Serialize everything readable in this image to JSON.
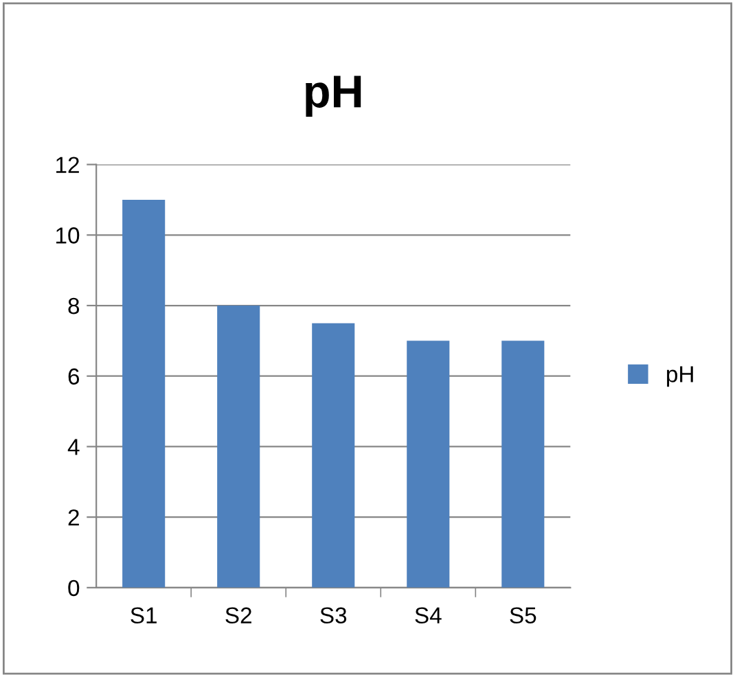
{
  "chart_data": {
    "type": "bar",
    "title": "pH",
    "categories": [
      "S1",
      "S2",
      "S3",
      "S4",
      "S5"
    ],
    "series": [
      {
        "name": "pH",
        "color": "#4f81bd",
        "values": [
          11,
          8,
          7.5,
          7,
          7
        ]
      }
    ],
    "ylim": [
      0,
      12
    ],
    "yticks": [
      0,
      2,
      4,
      6,
      8,
      10,
      12
    ],
    "grid": "y",
    "legend": "right"
  }
}
